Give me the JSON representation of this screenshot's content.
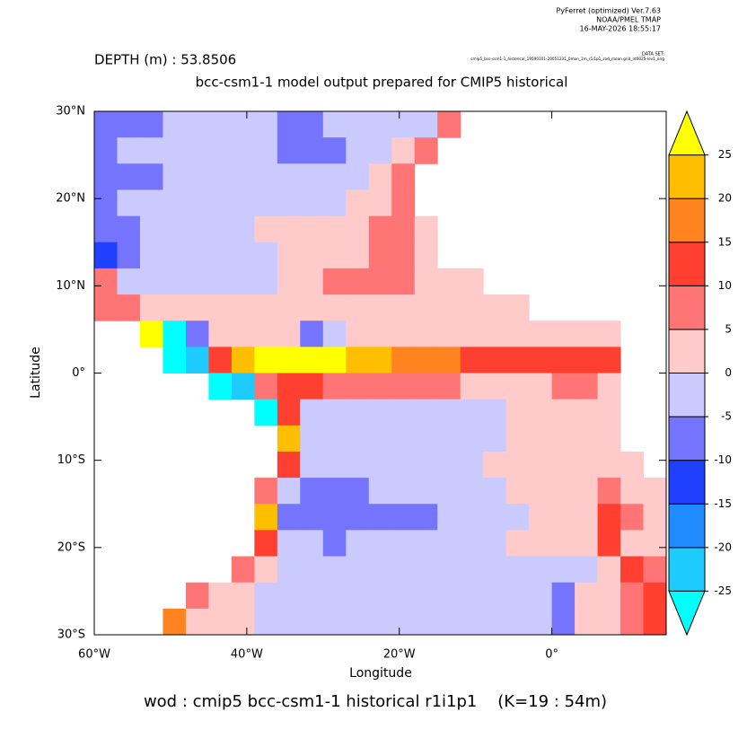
{
  "chart_data": {
    "type": "heatmap",
    "header": [
      "PyFerret (optimized) Ver.7.63",
      "NOAA/PMEL TMAP",
      "16-MAY-2026 18:55:17"
    ],
    "dataset_label": "DATA SET:",
    "dataset": "cmip5_bcc-csm1-1_historical_19590101-20051231_0mon_1m_r1i1p1_zod_mean.grid_nt0025-lev1_orig",
    "subtitle": "DEPTH (m) : 53.8506",
    "title": "bcc-csm1-1 model output prepared for CMIP5 historical",
    "x_label": "Longitude",
    "y_label": "Latitude",
    "footer": "wod : cmip5 bcc-csm1-1 historical r1i1p1    (K=19 : 54m)",
    "xlim": [
      -60,
      15
    ],
    "ylim": [
      -30,
      30
    ],
    "xticks": [
      {
        "value": -60,
        "label": "60°W"
      },
      {
        "value": -40,
        "label": "40°W"
      },
      {
        "value": -20,
        "label": "20°W"
      },
      {
        "value": 0,
        "label": "0°"
      }
    ],
    "yticks": [
      {
        "value": -30,
        "label": "30°S"
      },
      {
        "value": -20,
        "label": "20°S"
      },
      {
        "value": -10,
        "label": "10°S"
      },
      {
        "value": 0,
        "label": "0°"
      },
      {
        "value": 10,
        "label": "10°N"
      },
      {
        "value": 20,
        "label": "20°N"
      },
      {
        "value": 30,
        "label": "30°N"
      }
    ],
    "colorbar": {
      "levels": [
        -25,
        -20,
        -15,
        -10,
        -5,
        0,
        5,
        10,
        15,
        20,
        25
      ],
      "colors": [
        "#00ffff",
        "#1ecbff",
        "#1e8cff",
        "#2040ff",
        "#7474ff",
        "#cacaff",
        "#ffcaca",
        "#ff7474",
        "#ff4030",
        "#ff8420",
        "#ffbe00",
        "#ffff00"
      ]
    },
    "x": [
      -58.5,
      -55.5,
      -52.5,
      -49.5,
      -46.5,
      -43.5,
      -40.5,
      -37.5,
      -34.5,
      -31.5,
      -28.5,
      -25.5,
      -22.5,
      -19.5,
      -16.5,
      -13.5,
      -10.5,
      -7.5,
      -4.5,
      -1.5,
      1.5,
      4.5,
      7.5,
      10.5,
      13.5
    ],
    "y": [
      28.5,
      25.5,
      22.5,
      19.5,
      16.5,
      13.5,
      10.5,
      7.5,
      4.5,
      1.5,
      -1.5,
      -4.5,
      -7.5,
      -10.5,
      -13.5,
      -16.5,
      -19.5,
      -22.5,
      -25.5,
      -28.5
    ],
    "z": [
      [
        -7.5,
        -7.5,
        -7.5,
        -2.5,
        -2.5,
        -2.5,
        -2.5,
        -2.5,
        -7.5,
        -7.5,
        -2.5,
        -2.5,
        -2.5,
        -2.5,
        -2.5,
        7.5,
        null,
        null,
        null,
        null,
        null,
        null,
        null,
        null,
        null
      ],
      [
        -7.5,
        -2.5,
        -2.5,
        -2.5,
        -2.5,
        -2.5,
        -2.5,
        -2.5,
        -7.5,
        -7.5,
        -7.5,
        -2.5,
        -2.5,
        2.5,
        7.5,
        null,
        null,
        null,
        null,
        null,
        null,
        null,
        null,
        null,
        null
      ],
      [
        -7.5,
        -7.5,
        -7.5,
        -2.5,
        -2.5,
        -2.5,
        -2.5,
        -2.5,
        -2.5,
        -2.5,
        -2.5,
        -2.5,
        2.5,
        7.5,
        null,
        null,
        null,
        null,
        null,
        null,
        null,
        null,
        null,
        null,
        null
      ],
      [
        -7.5,
        -2.5,
        -2.5,
        -2.5,
        -2.5,
        -2.5,
        -2.5,
        -2.5,
        -2.5,
        -2.5,
        -2.5,
        2.5,
        2.5,
        7.5,
        null,
        null,
        null,
        null,
        null,
        null,
        null,
        null,
        null,
        null,
        null
      ],
      [
        -7.5,
        -7.5,
        -2.5,
        -2.5,
        -2.5,
        -2.5,
        -2.5,
        2.5,
        2.5,
        2.5,
        2.5,
        2.5,
        7.5,
        7.5,
        2.5,
        null,
        null,
        null,
        null,
        null,
        null,
        null,
        null,
        null,
        null
      ],
      [
        -12.5,
        -7.5,
        -2.5,
        -2.5,
        -2.5,
        -2.5,
        -2.5,
        -2.5,
        2.5,
        2.5,
        2.5,
        2.5,
        7.5,
        7.5,
        2.5,
        null,
        null,
        null,
        null,
        null,
        null,
        null,
        null,
        null,
        null
      ],
      [
        7.5,
        -2.5,
        -2.5,
        -2.5,
        -2.5,
        -2.5,
        -2.5,
        -2.5,
        2.5,
        2.5,
        7.5,
        7.5,
        7.5,
        7.5,
        2.5,
        2.5,
        2.5,
        null,
        null,
        null,
        null,
        null,
        null,
        null,
        null
      ],
      [
        7.5,
        7.5,
        2.5,
        2.5,
        2.5,
        2.5,
        2.5,
        2.5,
        2.5,
        2.5,
        2.5,
        2.5,
        2.5,
        2.5,
        2.5,
        2.5,
        2.5,
        2.5,
        2.5,
        null,
        null,
        null,
        null,
        null,
        null
      ],
      [
        null,
        null,
        27,
        -27,
        -7.5,
        2.5,
        2.5,
        2.5,
        2.5,
        -7.5,
        -2.5,
        2.5,
        2.5,
        2.5,
        2.5,
        2.5,
        2.5,
        2.5,
        2.5,
        2.5,
        2.5,
        2.5,
        2.5,
        null,
        null
      ],
      [
        null,
        null,
        null,
        -27,
        -22.5,
        12.5,
        22.5,
        27,
        27,
        27,
        27,
        22.5,
        22.5,
        17.5,
        17.5,
        17.5,
        12.5,
        12.5,
        12.5,
        12.5,
        12.5,
        12.5,
        12.5,
        null,
        null
      ],
      [
        null,
        null,
        null,
        null,
        null,
        -27,
        -22.5,
        7.5,
        12.5,
        12.5,
        7.5,
        7.5,
        7.5,
        7.5,
        7.5,
        7.5,
        2.5,
        2.5,
        2.5,
        2.5,
        7.5,
        7.5,
        2.5,
        null,
        null
      ],
      [
        null,
        null,
        null,
        null,
        null,
        null,
        null,
        -27,
        12.5,
        -2.5,
        -2.5,
        -2.5,
        -2.5,
        -2.5,
        -2.5,
        -2.5,
        -2.5,
        -2.5,
        2.5,
        2.5,
        2.5,
        2.5,
        2.5,
        null,
        null
      ],
      [
        null,
        null,
        null,
        null,
        null,
        null,
        null,
        null,
        22.5,
        -2.5,
        -2.5,
        -2.5,
        -2.5,
        -2.5,
        -2.5,
        -2.5,
        -2.5,
        -2.5,
        2.5,
        2.5,
        2.5,
        2.5,
        2.5,
        null,
        null
      ],
      [
        null,
        null,
        null,
        null,
        null,
        null,
        null,
        null,
        12.5,
        -2.5,
        -2.5,
        -2.5,
        -2.5,
        -2.5,
        -2.5,
        -2.5,
        -2.5,
        2.5,
        2.5,
        2.5,
        2.5,
        2.5,
        2.5,
        2.5,
        null
      ],
      [
        null,
        null,
        null,
        null,
        null,
        null,
        null,
        7.5,
        -2.5,
        -7.5,
        -7.5,
        -7.5,
        -2.5,
        -2.5,
        -2.5,
        -2.5,
        -2.5,
        -2.5,
        2.5,
        2.5,
        2.5,
        2.5,
        7.5,
        2.5,
        2.5
      ],
      [
        null,
        null,
        null,
        null,
        null,
        null,
        null,
        22.5,
        -7.5,
        -7.5,
        -7.5,
        -7.5,
        -7.5,
        -7.5,
        -7.5,
        -2.5,
        -2.5,
        -2.5,
        -2.5,
        2.5,
        2.5,
        2.5,
        12.5,
        7.5,
        2.5
      ],
      [
        null,
        null,
        null,
        null,
        null,
        null,
        null,
        12.5,
        -2.5,
        -2.5,
        -7.5,
        -2.5,
        -2.5,
        -2.5,
        -2.5,
        -2.5,
        -2.5,
        -2.5,
        2.5,
        2.5,
        2.5,
        2.5,
        12.5,
        2.5,
        2.5
      ],
      [
        null,
        null,
        null,
        null,
        null,
        null,
        7.5,
        2.5,
        -2.5,
        -2.5,
        -2.5,
        -2.5,
        -2.5,
        -2.5,
        -2.5,
        -2.5,
        -2.5,
        -2.5,
        -2.5,
        -2.5,
        -2.5,
        -2.5,
        2.5,
        12.5,
        7.5
      ],
      [
        null,
        null,
        null,
        null,
        7.5,
        2.5,
        2.5,
        -2.5,
        -2.5,
        -2.5,
        -2.5,
        -2.5,
        -2.5,
        -2.5,
        -2.5,
        -2.5,
        -2.5,
        -2.5,
        -2.5,
        -2.5,
        -7.5,
        2.5,
        2.5,
        7.5,
        12.5
      ],
      [
        null,
        null,
        null,
        17.5,
        2.5,
        2.5,
        2.5,
        -2.5,
        -2.5,
        -2.5,
        -2.5,
        -2.5,
        -2.5,
        -2.5,
        -2.5,
        -2.5,
        -2.5,
        -2.5,
        -2.5,
        -2.5,
        -7.5,
        2.5,
        2.5,
        7.5,
        12.5
      ]
    ]
  }
}
